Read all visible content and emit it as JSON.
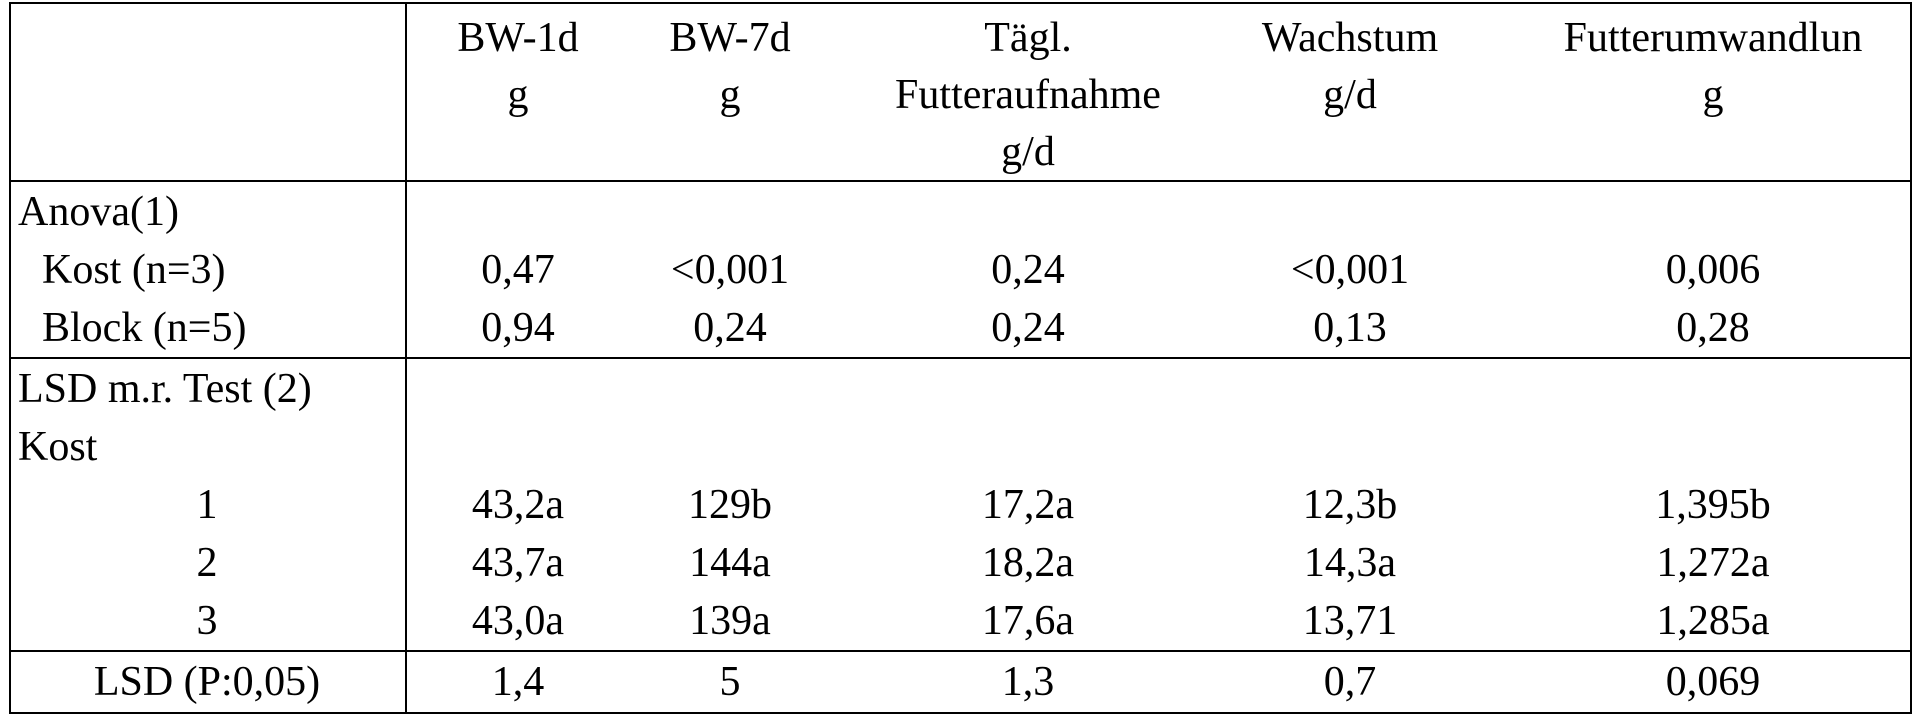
{
  "table": {
    "headers": [
      {
        "id": "bw1d",
        "lines": [
          "BW-1d",
          "g"
        ]
      },
      {
        "id": "bw7d",
        "lines": [
          "BW-7d",
          "g"
        ]
      },
      {
        "id": "feed",
        "lines": [
          "Tägl.",
          "Futteraufnahme",
          "g/d"
        ]
      },
      {
        "id": "growth",
        "lines": [
          "Wachstum",
          "g/d"
        ]
      },
      {
        "id": "conv",
        "lines": [
          "Futterumwandlun",
          "g"
        ]
      }
    ],
    "anova": {
      "label": "Anova(1)",
      "rows": [
        {
          "label": "Kost (n=3)",
          "values": [
            "0,47",
            "<0,001",
            "0,24",
            "<0,001",
            "0,006"
          ]
        },
        {
          "label": "Block (n=5)",
          "values": [
            "0,94",
            "0,24",
            "0,24",
            "0,13",
            "0,28"
          ]
        }
      ]
    },
    "lsd": {
      "label": "LSD m.r. Test (2)",
      "sublabel": "Kost",
      "rows": [
        {
          "label": "1",
          "values": [
            "43,2a",
            "129b",
            "17,2a",
            "12,3b",
            "1,395b"
          ]
        },
        {
          "label": "2",
          "values": [
            "43,7a",
            "144a",
            "18,2a",
            "14,3a",
            "1,272a"
          ]
        },
        {
          "label": "3",
          "values": [
            "43,0a",
            "139a",
            "17,6a",
            "13,71",
            "1,285a"
          ]
        }
      ]
    },
    "footer": {
      "label": "LSD (P:0,05)",
      "values": [
        "1,4",
        "5",
        "1,3",
        "0,7",
        "0,069"
      ]
    }
  }
}
